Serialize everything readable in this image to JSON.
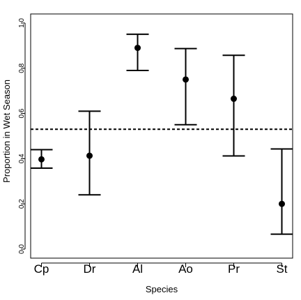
{
  "chart_data": {
    "type": "scatter",
    "title": "",
    "xlabel": "Species",
    "ylabel": "Proportion in Wet Season",
    "categories": [
      "Cp",
      "Dr",
      "Al",
      "Ao",
      "Pr",
      "St"
    ],
    "series": [
      {
        "values": [
          0.397,
          0.413,
          0.89,
          0.75,
          0.665,
          0.2
        ],
        "lower": [
          0.358,
          0.24,
          0.79,
          0.55,
          0.412,
          0.066
        ],
        "upper": [
          0.44,
          0.61,
          0.95,
          0.887,
          0.857,
          0.443
        ]
      }
    ],
    "reference_line": {
      "y": 0.53,
      "style": "dashed"
    },
    "yticks": [
      "0.0",
      "0.2",
      "0.4",
      "0.6",
      "0.8",
      "1.0"
    ],
    "ylim": [
      -0.04,
      1.04
    ],
    "grid": false,
    "legend": "none",
    "colors": {
      "marks": "#000000",
      "background": "#ffffff"
    }
  }
}
